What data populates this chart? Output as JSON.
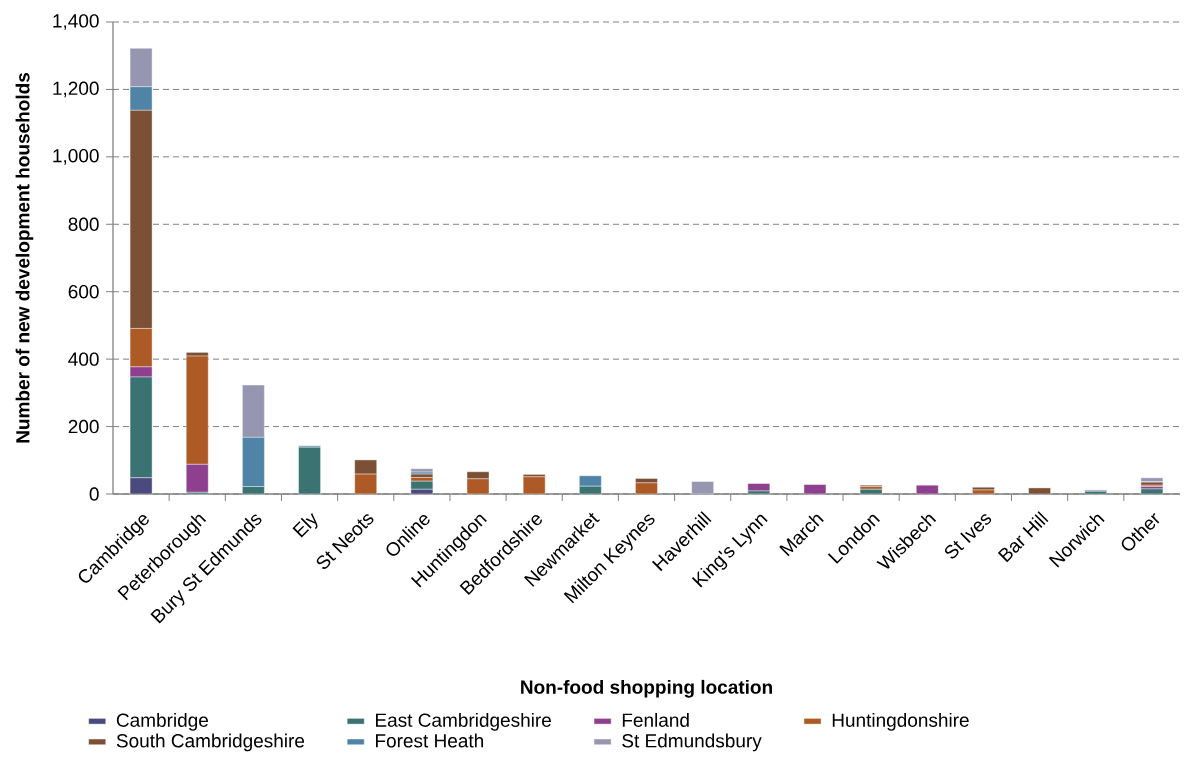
{
  "chart_data": {
    "type": "bar",
    "stacked": true,
    "xlabel": "Non-food shopping location",
    "ylabel": "Number of new development households",
    "categories": [
      "Cambridge",
      "Peterborough",
      "Bury St Edmunds",
      "Ely",
      "St Neots",
      "Online",
      "Huntingdon",
      "Bedfordshire",
      "Newmarket",
      "Milton Keynes",
      "Haverhill",
      "King's Lynn",
      "March",
      "London",
      "Wisbech",
      "St Ives",
      "Bar Hill",
      "Norwich",
      "Other"
    ],
    "series": [
      {
        "name": "Cambridge",
        "color": "#4a4a7e",
        "values": [
          48,
          0,
          0,
          0,
          0,
          14,
          0,
          0,
          0,
          0,
          0,
          0,
          0,
          0,
          0,
          0,
          0,
          0,
          0
        ]
      },
      {
        "name": "East Cambridgeshire",
        "color": "#3b7373",
        "values": [
          299,
          5,
          22,
          139,
          0,
          24,
          0,
          0,
          23,
          0,
          0,
          9,
          0,
          14,
          0,
          0,
          0,
          8,
          15
        ]
      },
      {
        "name": "Fenland",
        "color": "#8e3f8e",
        "values": [
          30,
          83,
          0,
          0,
          0,
          0,
          0,
          0,
          0,
          0,
          0,
          22,
          28,
          0,
          26,
          0,
          0,
          0,
          7
        ]
      },
      {
        "name": "Huntingdonshire",
        "color": "#ad5a27",
        "values": [
          114,
          321,
          0,
          0,
          59,
          11,
          45,
          51,
          0,
          33,
          0,
          0,
          0,
          8,
          0,
          12,
          0,
          0,
          4
        ]
      },
      {
        "name": "South Cambridgeshire",
        "color": "#7b5034",
        "values": [
          647,
          11,
          0,
          0,
          42,
          10,
          21,
          7,
          0,
          13,
          0,
          0,
          0,
          4,
          0,
          8,
          18,
          0,
          9
        ]
      },
      {
        "name": "Forest Heath",
        "color": "#4f84a6",
        "values": [
          70,
          0,
          146,
          4,
          0,
          6,
          0,
          0,
          31,
          0,
          0,
          0,
          0,
          0,
          0,
          0,
          0,
          0,
          2
        ]
      },
      {
        "name": "St Edmundsbury",
        "color": "#9696b0",
        "values": [
          114,
          0,
          155,
          0,
          0,
          10,
          0,
          0,
          0,
          0,
          37,
          0,
          0,
          0,
          0,
          0,
          0,
          4,
          11
        ]
      }
    ],
    "ylim": [
      0,
      1400
    ],
    "yticks": [
      0,
      200,
      400,
      600,
      800,
      {
        "value": 1000,
        "label": "1,000"
      },
      {
        "value": 1200,
        "label": "1,200"
      },
      {
        "value": 1400,
        "label": "1,400"
      }
    ],
    "grid": "y",
    "legend": "bottom"
  }
}
